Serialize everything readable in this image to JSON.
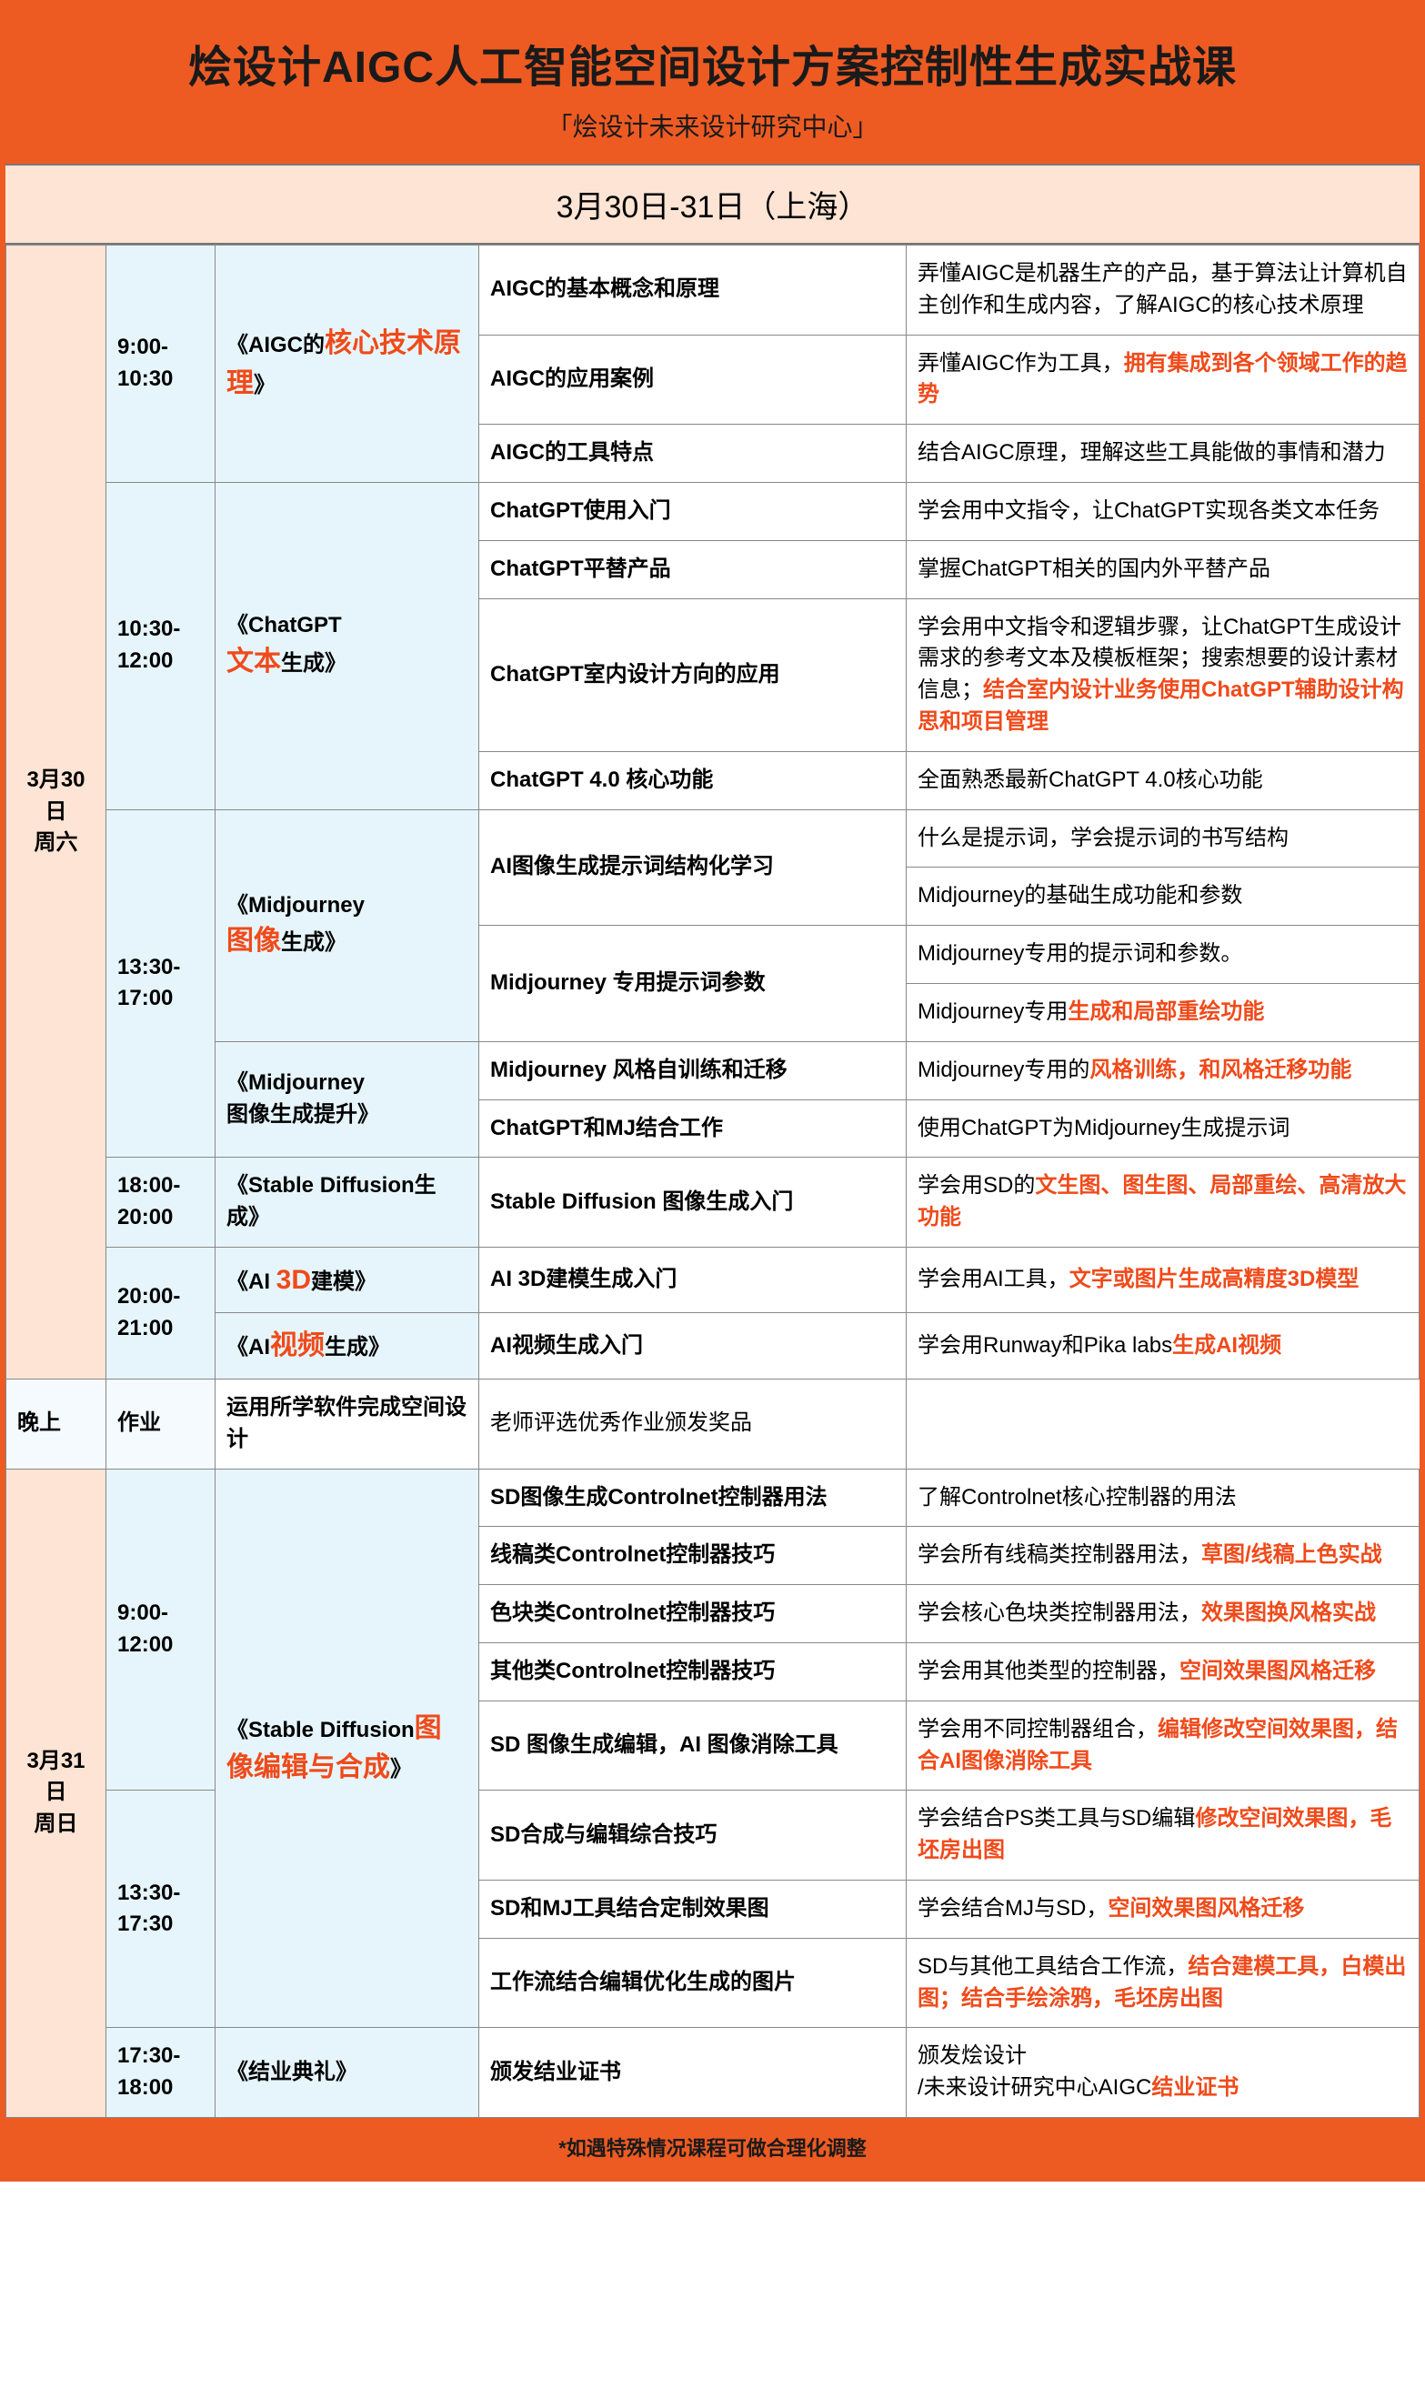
{
  "colors": {
    "brand_orange": "#ed5b23",
    "peach_bg": "#fde4d4",
    "lightblue_bg": "#e6f5fb",
    "border": "#888888",
    "text": "#1a1a1a",
    "highlight": "#f04a1a"
  },
  "header": {
    "title": "烩设计AIGC人工智能空间设计方案控制性生成实战课",
    "subtitle": "「烩设计未来设计研究中心」"
  },
  "datebar": "3月30日-31日（上海）",
  "footer": "*如遇特殊情况课程可做合理化调整",
  "days": {
    "d1": {
      "label_line1": "3月30日",
      "label_line2": "周六"
    },
    "d2": {
      "label_line1": "3月31日",
      "label_line2": "周日"
    }
  },
  "times": {
    "t1": "9:00-10:30",
    "t2": "10:30-12:00",
    "t3": "13:30-17:00",
    "t4": "18:00-20:00",
    "t5": "20:00-21:00",
    "t6": "晚上",
    "t7": "9:00-12:00",
    "t8": "13:30-17:30",
    "t9": "17:30-18:00"
  },
  "modules": {
    "m1": {
      "pre": "《AIGC的",
      "hl": "核心技术原理",
      "post": "》"
    },
    "m2": {
      "pre": "《ChatGPT\n",
      "hl": "文本",
      "post": "生成》"
    },
    "m3": {
      "pre": "《Midjourney\n",
      "hl": "图像",
      "post": "生成》"
    },
    "m3b": {
      "text": "《Midjourney\n图像生成提升》"
    },
    "m4": {
      "text": "《Stable Diffusion生成》"
    },
    "m5": {
      "pre": "《AI ",
      "hl": "3D",
      "post": "建模》"
    },
    "m6": {
      "pre": "《AI",
      "hl": "视频",
      "post": "生成》"
    },
    "m7": {
      "text": "作业"
    },
    "m8": {
      "pre": "《Stable Diffusion",
      "hl": "图像编辑与合成",
      "post": "》"
    },
    "m9": {
      "text": "《结业典礼》"
    }
  },
  "rows": {
    "r1": {
      "topic": "AIGC的基本概念和原理",
      "desc_plain": "弄懂AIGC是机器生产的产品，基于算法让计算机自主创作和生成内容，了解AIGC的核心技术原理"
    },
    "r2": {
      "topic": "AIGC的应用案例",
      "desc_pre": "弄懂AIGC作为工具，",
      "desc_hl": "拥有集成到各个领域工作的趋势"
    },
    "r3": {
      "topic": "AIGC的工具特点",
      "desc_plain": "结合AIGC原理，理解这些工具能做的事情和潜力"
    },
    "r4": {
      "topic": "ChatGPT使用入门",
      "desc_plain": "学会用中文指令，让ChatGPT实现各类文本任务"
    },
    "r5": {
      "topic": "ChatGPT平替产品",
      "desc_plain": "掌握ChatGPT相关的国内外平替产品"
    },
    "r6": {
      "topic": "ChatGPT室内设计方向的应用",
      "desc_pre": "学会用中文指令和逻辑步骤，让ChatGPT生成设计需求的参考文本及模板框架；搜索想要的设计素材信息；",
      "desc_hl": "结合室内设计业务使用ChatGPT辅助设计构思和项目管理"
    },
    "r7": {
      "topic": "ChatGPT 4.0 核心功能",
      "desc_plain": "全面熟悉最新ChatGPT 4.0核心功能"
    },
    "r8": {
      "topic": "AI图像生成提示词结构化学习",
      "desc_plain": "什么是提示词，学会提示词的书写结构"
    },
    "r8b": {
      "desc_plain": "Midjourney的基础生成功能和参数"
    },
    "r9": {
      "topic": "Midjourney 专用提示词参数",
      "desc_plain": "Midjourney专用的提示词和参数。"
    },
    "r9b": {
      "desc_pre": "Midjourney专用",
      "desc_hl": "生成和局部重绘功能"
    },
    "r10": {
      "topic": "Midjourney 风格自训练和迁移",
      "desc_pre": "Midjourney专用的",
      "desc_hl": "风格训练，和风格迁移功能"
    },
    "r11": {
      "topic": "ChatGPT和MJ结合工作",
      "desc_plain": "使用ChatGPT为Midjourney生成提示词"
    },
    "r12": {
      "topic": "Stable Diffusion 图像生成入门",
      "desc_pre": "学会用SD的",
      "desc_hl": "文生图、图生图、局部重绘、高清放大功能"
    },
    "r13": {
      "topic": "AI 3D建模生成入门",
      "desc_pre": "学会用AI工具，",
      "desc_hl": "文字或图片生成高精度3D模型"
    },
    "r14": {
      "topic": "AI视频生成入门",
      "desc_pre": "学会用Runway和Pika labs",
      "desc_hl": "生成AI视频"
    },
    "r15": {
      "topic": "运用所学软件完成空间设计",
      "desc_plain": "老师评选优秀作业颁发奖品"
    },
    "r16": {
      "topic": "SD图像生成Controlnet控制器用法",
      "desc_plain": "了解Controlnet核心控制器的用法"
    },
    "r17": {
      "topic": "线稿类Controlnet控制器技巧",
      "desc_pre": "学会所有线稿类控制器用法，",
      "desc_hl": "草图/线稿上色实战"
    },
    "r18": {
      "topic": "色块类Controlnet控制器技巧",
      "desc_pre": "学会核心色块类控制器用法，",
      "desc_hl": "效果图换风格实战"
    },
    "r19": {
      "topic": "其他类Controlnet控制器技巧",
      "desc_pre": "学会用其他类型的控制器，",
      "desc_hl": "空间效果图风格迁移"
    },
    "r20": {
      "topic": "SD 图像生成编辑，AI 图像消除工具",
      "desc_pre": "学会用不同控制器组合，",
      "desc_hl": "编辑修改空间效果图，结合AI图像消除工具"
    },
    "r21": {
      "topic": "SD合成与编辑综合技巧",
      "desc_pre": "学会结合PS类工具与SD编辑",
      "desc_hl": "修改空间效果图，毛坯房出图"
    },
    "r22": {
      "topic": "SD和MJ工具结合定制效果图",
      "desc_pre": "学会结合MJ与SD，",
      "desc_hl": "空间效果图风格迁移"
    },
    "r23": {
      "topic": "工作流结合编辑优化生成的图片",
      "desc_pre": "SD与其他工具结合工作流，",
      "desc_hl": "结合建模工具，白模出图；结合手绘涂鸦，毛坯房出图"
    },
    "r24": {
      "topic": "颁发结业证书",
      "desc_pre": "颁发烩设计\n/未来设计研究中心AIGC",
      "desc_hl": "结业证书"
    }
  }
}
